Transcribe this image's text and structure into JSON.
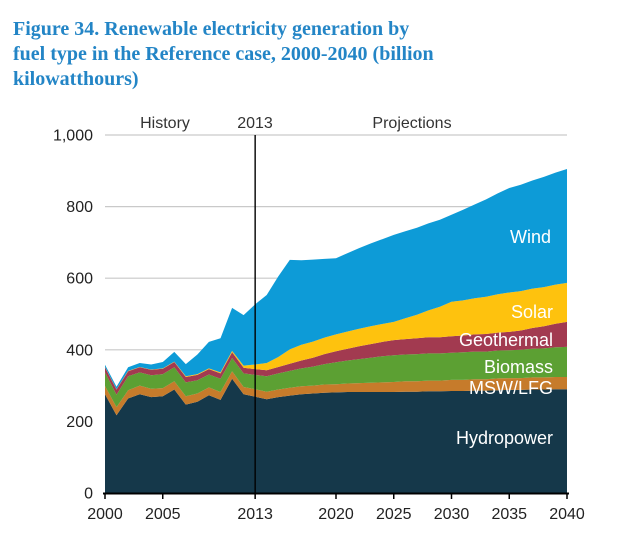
{
  "figure": {
    "title_lines": [
      "Figure 34. Renewable electricity generation by",
      "fuel type in the Reference case, 2000-2040 (billion",
      "kilowatthours)"
    ],
    "title_color": "#2385C6"
  },
  "chart_data": {
    "type": "area",
    "stacked": true,
    "title": "Figure 34. Renewable electricity generation by fuel type in the Reference case, 2000-2040 (billion kilowatthours)",
    "unit": "billion kilowatthours",
    "xlabel": "",
    "ylabel": "billion kilowatthours",
    "ylim": [
      0,
      1000
    ],
    "grid": "horizontal",
    "grid_color": "#C9C9C9",
    "series_label_color": "#FFFFFF",
    "x": [
      2000,
      2001,
      2002,
      2003,
      2004,
      2005,
      2006,
      2007,
      2008,
      2009,
      2010,
      2011,
      2012,
      2013,
      2014,
      2015,
      2016,
      2017,
      2018,
      2019,
      2020,
      2021,
      2022,
      2023,
      2024,
      2025,
      2026,
      2027,
      2028,
      2029,
      2030,
      2031,
      2032,
      2033,
      2034,
      2035,
      2036,
      2037,
      2038,
      2039,
      2040
    ],
    "series": [
      {
        "name": "Hydropower",
        "color": "#15384A",
        "values": [
          276,
          217,
          264,
          276,
          268,
          270,
          289,
          247,
          255,
          273,
          260,
          319,
          276,
          269,
          262,
          268,
          272,
          276,
          278,
          280,
          281,
          282,
          282,
          282,
          282,
          282,
          283,
          283,
          284,
          284,
          285,
          285,
          286,
          286,
          287,
          288,
          288,
          289,
          289,
          290,
          290
        ]
      },
      {
        "name": "MSW/LFG",
        "color": "#C67B2B",
        "values": [
          23,
          23,
          23,
          24,
          23,
          23,
          23,
          23,
          23,
          22,
          22,
          21,
          20,
          21,
          21,
          21,
          22,
          22,
          22,
          23,
          23,
          24,
          25,
          26,
          27,
          28,
          29,
          29,
          30,
          30,
          31,
          31,
          32,
          32,
          33,
          33,
          33,
          34,
          34,
          34,
          34
        ]
      },
      {
        "name": "Biomass",
        "color": "#5CA033",
        "values": [
          38,
          35,
          39,
          37,
          38,
          39,
          39,
          39,
          37,
          36,
          37,
          37,
          38,
          40,
          43,
          45,
          47,
          50,
          53,
          57,
          61,
          64,
          67,
          70,
          73,
          75,
          75,
          76,
          76,
          76,
          76,
          77,
          77,
          77,
          78,
          78,
          79,
          80,
          81,
          83,
          84
        ]
      },
      {
        "name": "Geothermal",
        "color": "#A23A50",
        "values": [
          14,
          14,
          14,
          14,
          15,
          15,
          15,
          15,
          15,
          15,
          15,
          16,
          16,
          16,
          17,
          18,
          20,
          22,
          25,
          28,
          31,
          33,
          36,
          38,
          40,
          42,
          43,
          44,
          45,
          45,
          46,
          47,
          48,
          49,
          50,
          51,
          54,
          58,
          62,
          66,
          70
        ]
      },
      {
        "name": "Solar",
        "color": "#FEC20E",
        "values": [
          1,
          1,
          1,
          1,
          1,
          1,
          1,
          2,
          2,
          2,
          3,
          4,
          6,
          13,
          20,
          28,
          40,
          44,
          45,
          46,
          47,
          48,
          49,
          50,
          50,
          51,
          58,
          66,
          75,
          85,
          96,
          98,
          101,
          104,
          107,
          110,
          110,
          110,
          109,
          109,
          109
        ]
      },
      {
        "name": "Wind",
        "color": "#0D9BD7",
        "values": [
          6,
          7,
          10,
          11,
          14,
          18,
          27,
          34,
          55,
          74,
          95,
          120,
          141,
          168,
          190,
          225,
          250,
          236,
          229,
          220,
          213,
          219,
          225,
          231,
          237,
          243,
          243,
          243,
          243,
          243,
          243,
          253,
          262,
          272,
          282,
          292,
          297,
          302,
          308,
          313,
          318
        ]
      }
    ],
    "yticks": {
      "values": [
        0,
        200,
        400,
        600,
        800,
        1000
      ],
      "labels": [
        "0",
        "200",
        "400",
        "600",
        "800",
        "1,000"
      ]
    },
    "xticks": {
      "values": [
        2000,
        2005,
        2013,
        2020,
        2025,
        2030,
        2035,
        2040
      ],
      "labels": [
        "2000",
        "2005",
        "2013",
        "2020",
        "2025",
        "2030",
        "2035",
        "2040"
      ]
    },
    "annotations": {
      "history_label": "History",
      "divider_label": "2013",
      "projections_label": "Projections",
      "divider_year": 2013
    }
  }
}
